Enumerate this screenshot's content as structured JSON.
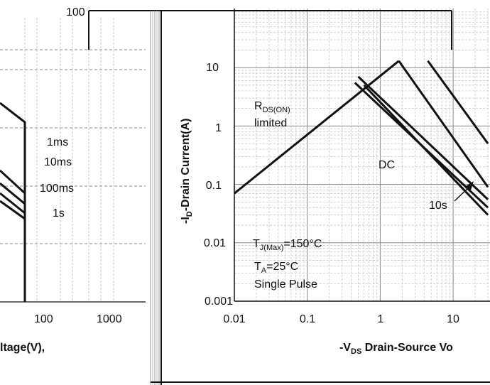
{
  "chart_data": [
    {
      "type": "line",
      "description_scope": "left partial chart (cropped)",
      "y_tick_labels": [
        "100"
      ],
      "x_tick_labels": [
        "100",
        "1000"
      ],
      "xlabel": "ltage(V),",
      "annotations": [
        "1ms",
        "10ms",
        "100ms",
        "1s"
      ]
    },
    {
      "type": "line",
      "xscale": "log",
      "yscale": "log",
      "xlim": [
        0.01,
        30
      ],
      "ylim": [
        0.001,
        30
      ],
      "x_tick_labels": [
        "0.01",
        "0.1",
        "1",
        "10"
      ],
      "y_tick_labels": [
        "0.001",
        "0.01",
        "0.1",
        "1",
        "10"
      ],
      "xlabel": "-V",
      "xlabel_sub": "DS",
      "xlabel_rest": " Drain-Source Vo",
      "ylabel": "-I",
      "ylabel_sub": "D",
      "ylabel_rest": "-Drain Current(A)",
      "annotations": {
        "rds_main": "R",
        "rds_sub": "DS(ON)",
        "rds_line2": "limited",
        "dc": "DC",
        "ten_s": "10s",
        "tj_main": "T",
        "tj_sub": "J(Max)",
        "tj_rest": "=150°C",
        "ta_main": "T",
        "ta_sub": "A",
        "ta_rest": "=25°C",
        "pulse": "Single Pulse"
      },
      "series": [
        {
          "label_ref": "rds_limit",
          "x": [
            0.01,
            1.8
          ],
          "y": [
            0.07,
            13
          ]
        },
        {
          "label_ref": "dc_line",
          "x": [
            0.6,
            30
          ],
          "y": [
            5,
            0.03
          ]
        },
        {
          "label_ref": "ten_s_line",
          "x": [
            0.45,
            30
          ],
          "y": [
            5.5,
            0.04
          ]
        },
        {
          "label_ref": "line_3",
          "x": [
            0.5,
            30
          ],
          "y": [
            7,
            0.055
          ]
        },
        {
          "label_ref": "line_4",
          "x": [
            1.8,
            30
          ],
          "y": [
            13,
            0.09
          ]
        },
        {
          "label_ref": "line_5",
          "x": [
            4.5,
            30
          ],
          "y": [
            13,
            0.5
          ]
        }
      ]
    }
  ]
}
